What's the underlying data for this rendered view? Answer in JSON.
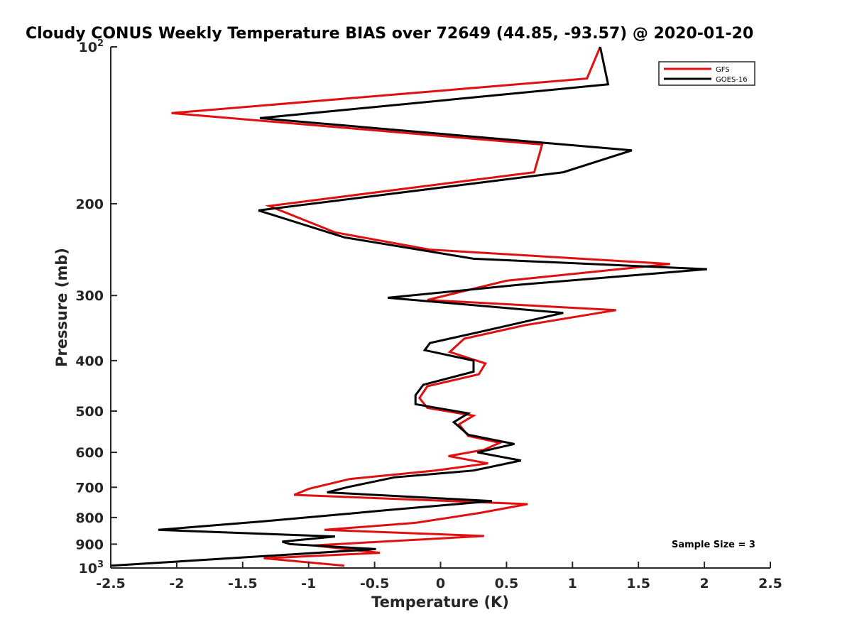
{
  "chart_data": {
    "type": "line",
    "title": "Cloudy CONUS Weekly Temperature BIAS over 72649 (44.85, -93.57) @ 2020-01-20",
    "xlabel": "Temperature (K)",
    "ylabel": "Pressure (mb)",
    "xlim": [
      -2.5,
      2.5
    ],
    "ylim": [
      100,
      1000
    ],
    "y_scale": "log",
    "y_reversed": true,
    "grid": false,
    "legend_position": "top-right",
    "xticks": [
      -2.5,
      -2,
      -1.5,
      -1,
      -0.5,
      0,
      0.5,
      1,
      1.5,
      2,
      2.5
    ],
    "xtick_labels": [
      "-2.5",
      "-2",
      "-1.5",
      "-1",
      "-0.5",
      "0",
      "0.5",
      "1",
      "1.5",
      "2",
      "2.5"
    ],
    "yticks": [
      {
        "value": 100,
        "base": "10",
        "exp": "2"
      },
      {
        "value": 200,
        "label": "200"
      },
      {
        "value": 300,
        "label": "300"
      },
      {
        "value": 400,
        "label": "400"
      },
      {
        "value": 500,
        "label": "500"
      },
      {
        "value": 600,
        "label": "600"
      },
      {
        "value": 700,
        "label": "700"
      },
      {
        "value": 800,
        "label": "800"
      },
      {
        "value": 900,
        "label": "900"
      },
      {
        "value": 1000,
        "base": "10",
        "exp": "3"
      }
    ],
    "annotation": "Sample Size = 3",
    "series": [
      {
        "name": "GFS",
        "color": "#e01010",
        "points": [
          [
            1.21,
            100
          ],
          [
            1.11,
            115
          ],
          [
            -2.04,
            134
          ],
          [
            0.77,
            154
          ],
          [
            0.71,
            174
          ],
          [
            -1.3,
            202
          ],
          [
            -0.8,
            227
          ],
          [
            -0.08,
            245
          ],
          [
            1.74,
            261
          ],
          [
            0.5,
            281
          ],
          [
            -0.1,
            306
          ],
          [
            1.33,
            320
          ],
          [
            0.64,
            342
          ],
          [
            0.18,
            363
          ],
          [
            0.07,
            385
          ],
          [
            0.34,
            405
          ],
          [
            0.29,
            425
          ],
          [
            -0.1,
            448
          ],
          [
            -0.16,
            472
          ],
          [
            -0.1,
            493
          ],
          [
            0.25,
            510
          ],
          [
            0.14,
            530
          ],
          [
            0.21,
            558
          ],
          [
            0.45,
            575
          ],
          [
            0.33,
            593
          ],
          [
            0.06,
            610
          ],
          [
            0.36,
            630
          ],
          [
            -0.04,
            650
          ],
          [
            -0.69,
            675
          ],
          [
            -1.0,
            705
          ],
          [
            -1.11,
            724
          ],
          [
            0.66,
            754
          ],
          [
            0.3,
            784
          ],
          [
            -0.19,
            819
          ],
          [
            -0.88,
            845
          ],
          [
            0.33,
            868
          ],
          [
            -0.96,
            905
          ],
          [
            -0.46,
            935
          ],
          [
            -1.34,
            958
          ],
          [
            -0.73,
            990
          ]
        ]
      },
      {
        "name": "GOES-16",
        "color": "#000000",
        "points": [
          [
            1.21,
            100
          ],
          [
            1.27,
            118
          ],
          [
            -1.37,
            137
          ],
          [
            1.45,
            158
          ],
          [
            0.93,
            174
          ],
          [
            -1.38,
            206
          ],
          [
            -0.73,
            232
          ],
          [
            0.25,
            255
          ],
          [
            2.02,
            267
          ],
          [
            0.6,
            286
          ],
          [
            -0.4,
            303
          ],
          [
            0.93,
            324
          ],
          [
            0.35,
            350
          ],
          [
            -0.08,
            370
          ],
          [
            -0.12,
            382
          ],
          [
            0.25,
            400
          ],
          [
            0.25,
            420
          ],
          [
            -0.13,
            445
          ],
          [
            -0.19,
            466
          ],
          [
            -0.19,
            485
          ],
          [
            0.21,
            505
          ],
          [
            0.1,
            525
          ],
          [
            0.21,
            555
          ],
          [
            0.56,
            578
          ],
          [
            0.28,
            600
          ],
          [
            0.61,
            622
          ],
          [
            0.25,
            650
          ],
          [
            -0.35,
            670
          ],
          [
            -0.71,
            700
          ],
          [
            -0.86,
            716
          ],
          [
            0.39,
            744
          ],
          [
            -0.39,
            774
          ],
          [
            -1.35,
            814
          ],
          [
            -2.14,
            845
          ],
          [
            -0.8,
            870
          ],
          [
            -1.2,
            890
          ],
          [
            -1.14,
            900
          ],
          [
            -0.49,
            920
          ],
          [
            -1.51,
            955
          ],
          [
            -2.5,
            990
          ]
        ]
      }
    ]
  }
}
